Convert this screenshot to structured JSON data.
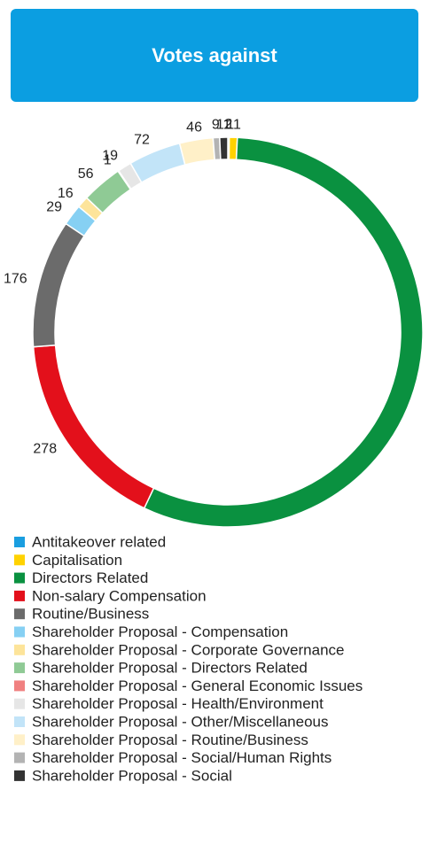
{
  "chart_data": {
    "type": "donut",
    "title": "Votes against",
    "categories": [
      "Antitakeover related",
      "Capitalisation",
      "Directors Related",
      "Non-salary Compensation",
      "Routine/Business",
      "Shareholder Proposal - Compensation",
      "Shareholder Proposal - Corporate Governance",
      "Shareholder Proposal - Directors Related",
      "Shareholder Proposal - General Economic Issues",
      "Shareholder Proposal - Health/Environment",
      "Shareholder Proposal - Other/Miscellaneous",
      "Shareholder Proposal - Routine/Business",
      "Shareholder Proposal - Social/Human Rights",
      "Shareholder Proposal - Social"
    ],
    "values": [
      2,
      11,
      934,
      278,
      176,
      29,
      16,
      56,
      1,
      19,
      72,
      46,
      9,
      11
    ],
    "colors": [
      "#1a9ee0",
      "#ffd200",
      "#0a9140",
      "#e3101b",
      "#6b6b6b",
      "#86d0f3",
      "#fde49a",
      "#8fca95",
      "#f08080",
      "#e6e6e6",
      "#c2e4f8",
      "#fff0c8",
      "#b3b3b3",
      "#333333"
    ]
  }
}
